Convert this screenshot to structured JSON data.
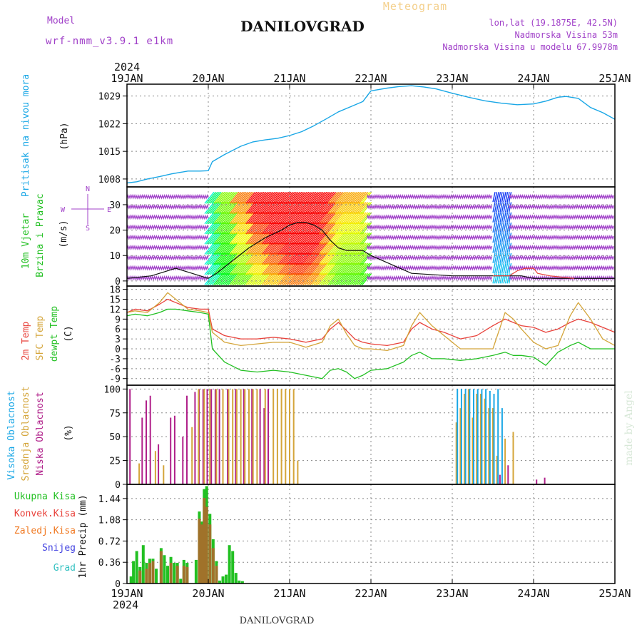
{
  "header": {
    "meteogram_label": "Meteogram",
    "location_title": "DANILOVGRAD",
    "model_label": "Model",
    "model_name": "wrf-nmm_v3.9.1 e1km",
    "lonlat": "lon,lat (19.1875E, 42.5N)",
    "altitude": "Nadmorska Visina 53m",
    "model_altitude": "Nadmorska Visina u modelu 67.9978m",
    "bottom_title": "DANILOVGRAD",
    "watermark": "made by Angel"
  },
  "time_axis": {
    "year": "2024",
    "ticks": [
      "19JAN",
      "20JAN",
      "21JAN",
      "22JAN",
      "23JAN",
      "24JAN",
      "25JAN"
    ]
  },
  "colors": {
    "pressure": "#1aa7e6",
    "temp2m": "#e8413a",
    "sfc": "#d4a53a",
    "dewpt": "#22c022",
    "purple": "#a040c8",
    "low_cloud": "#b0208a",
    "mid_cloud": "#d4a53a",
    "high_cloud": "#1aa7e6",
    "precip_total": "#22c022",
    "precip_conv": "#e8413a",
    "precip_frozen": "#f07820",
    "precip_snow": "#4040e0",
    "precip_hail": "#30c0c0"
  },
  "chart_data": [
    {
      "type": "line",
      "panel": "pressure",
      "ylabel_lines": [
        "Pritisak na nivou mora",
        "(hPa)"
      ],
      "y_ticks": [
        1008,
        1015,
        1022,
        1029
      ],
      "ylim": [
        1006,
        1032
      ],
      "x_days": [
        0,
        0.12,
        0.25,
        0.4,
        0.55,
        0.75,
        0.9,
        1.0,
        1.05,
        1.2,
        1.4,
        1.55,
        1.7,
        1.85,
        2.0,
        2.15,
        2.3,
        2.45,
        2.6,
        2.75,
        2.9,
        3.0,
        3.2,
        3.35,
        3.5,
        3.65,
        3.8,
        4.0,
        4.2,
        4.4,
        4.6,
        4.8,
        5.0,
        5.15,
        5.3,
        5.4,
        5.55,
        5.7,
        5.85,
        6.0
      ],
      "values": [
        1007,
        1007.3,
        1008,
        1008.6,
        1009.3,
        1010,
        1010,
        1010.1,
        1012.4,
        1014.2,
        1016.3,
        1017.4,
        1017.9,
        1018.3,
        1019,
        1020,
        1021.5,
        1023.2,
        1025,
        1026.3,
        1027.6,
        1030.3,
        1031,
        1031.4,
        1031.6,
        1031.3,
        1030.8,
        1029.7,
        1028.7,
        1027.8,
        1027.2,
        1026.8,
        1027,
        1027.7,
        1028.7,
        1028.9,
        1028.4,
        1026.1,
        1024.8,
        1023.1
      ]
    },
    {
      "type": "line",
      "panel": "wind",
      "ylabel_lines": [
        "10m Vjetar",
        "Brzina i Pravac",
        "(m/s)"
      ],
      "compass": [
        "N",
        "W",
        "E",
        "S"
      ],
      "y_ticks": [
        0,
        10,
        20,
        30
      ],
      "ylim": [
        -2,
        37
      ],
      "x_days": [
        0,
        0.3,
        0.6,
        0.8,
        1.0,
        1.1,
        1.3,
        1.5,
        1.7,
        1.9,
        2.0,
        2.1,
        2.2,
        2.3,
        2.4,
        2.5,
        2.6,
        2.7,
        2.8,
        2.9,
        3.0,
        3.5,
        4.0,
        4.5,
        4.7,
        4.85,
        5.0,
        5.2,
        5.5,
        6.0
      ],
      "values": [
        1,
        2,
        5,
        3,
        1,
        3,
        8,
        13,
        17,
        20,
        22,
        23,
        23,
        22,
        20,
        16,
        13,
        12,
        12,
        12,
        10,
        3,
        2,
        2,
        2,
        2,
        1,
        1,
        1,
        1
      ],
      "secondary_values_days": [
        4.5,
        4.7,
        4.8,
        4.9,
        5.0,
        5.05,
        5.2,
        5.5
      ],
      "secondary_values": [
        2,
        2,
        4,
        5,
        5,
        3,
        2,
        1
      ]
    },
    {
      "type": "line",
      "panel": "temperature",
      "ylabel_lines": [
        "2m Temp",
        "SFC Temp",
        "dewpt Temp",
        "(C)"
      ],
      "y_ticks": [
        -9,
        -6,
        -3,
        0,
        3,
        6,
        9,
        12,
        15,
        18
      ],
      "ylim": [
        -11,
        19
      ],
      "x_days": [
        0,
        0.1,
        0.25,
        0.4,
        0.5,
        0.6,
        0.75,
        0.9,
        1.0,
        1.05,
        1.2,
        1.4,
        1.6,
        1.8,
        2.0,
        2.2,
        2.4,
        2.5,
        2.6,
        2.7,
        2.8,
        2.9,
        3.0,
        3.2,
        3.4,
        3.5,
        3.6,
        3.75,
        3.9,
        4.1,
        4.3,
        4.5,
        4.65,
        4.75,
        4.85,
        5.0,
        5.15,
        5.3,
        5.45,
        5.55,
        5.7,
        5.85,
        6.0
      ],
      "series": [
        {
          "name": "2m Temp",
          "values": [
            11,
            12,
            11.5,
            13.5,
            15,
            14,
            12.5,
            12,
            12,
            6,
            4,
            3,
            3,
            3.5,
            3,
            2,
            3,
            6,
            8,
            5.5,
            3,
            2,
            1.5,
            1,
            2,
            6,
            8,
            6,
            5,
            3,
            4,
            7,
            9,
            8,
            7,
            6.5,
            5,
            6,
            8,
            9,
            8,
            6.5,
            5
          ]
        },
        {
          "name": "SFC Temp",
          "values": [
            11,
            11.5,
            11,
            14,
            17,
            15,
            12,
            11.5,
            11,
            5,
            2,
            1,
            1.5,
            2,
            2,
            0.5,
            2,
            7,
            9,
            4.5,
            1,
            0,
            0,
            -0.5,
            1,
            7,
            11,
            7,
            4,
            0,
            0,
            0,
            11,
            9,
            6,
            2,
            0,
            1,
            10,
            14,
            9,
            3,
            1
          ]
        },
        {
          "name": "dewpt Temp",
          "values": [
            10,
            10.5,
            10,
            11,
            12,
            12,
            11.5,
            11,
            10.5,
            0,
            -4,
            -6.5,
            -7,
            -6.5,
            -7,
            -8,
            -9,
            -6.5,
            -6,
            -7,
            -9,
            -8,
            -6.5,
            -6,
            -4,
            -2,
            -1,
            -3,
            -3,
            -3.5,
            -3,
            -2,
            -1,
            -2,
            -2,
            -2.5,
            -5,
            -1,
            1,
            2,
            0,
            0,
            0
          ]
        }
      ]
    },
    {
      "type": "bar",
      "panel": "cloud",
      "ylabel_lines": [
        "Visoka Oblacnost",
        "Srednja Oblacnost",
        "Niska Oblacnost",
        "(%)"
      ],
      "y_ticks": [
        0,
        25,
        50,
        75,
        100
      ],
      "ylim": [
        0,
        104
      ],
      "series": [
        {
          "name": "Niska Oblacnost",
          "x_days": [
            0.05,
            0.2,
            0.25,
            0.3,
            0.4,
            0.55,
            0.6,
            0.7,
            0.75,
            0.85,
            0.9,
            0.95,
            1.0,
            1.05,
            1.1,
            1.15,
            1.25,
            1.35,
            1.45,
            1.55,
            1.65,
            1.7,
            1.75,
            4.6,
            4.7,
            5.05,
            5.15
          ],
          "values": [
            100,
            70,
            88,
            93,
            42,
            70,
            72,
            50,
            93,
            97,
            100,
            100,
            100,
            100,
            100,
            100,
            100,
            100,
            100,
            100,
            100,
            80,
            100,
            10,
            20,
            5,
            7
          ]
        },
        {
          "name": "Srednja Oblacnost",
          "x_days": [
            0.15,
            0.35,
            0.45,
            0.8,
            0.88,
            0.95,
            1.02,
            1.1,
            1.18,
            1.25,
            1.3,
            1.35,
            1.4,
            1.45,
            1.5,
            1.55,
            1.6,
            1.7,
            1.8,
            1.85,
            1.9,
            1.95,
            2.0,
            2.05,
            2.1,
            4.05,
            4.1,
            4.15,
            4.2,
            4.25,
            4.3,
            4.35,
            4.4,
            4.45,
            4.5,
            4.55,
            4.65,
            4.75
          ],
          "values": [
            22,
            35,
            20,
            60,
            100,
            100,
            100,
            100,
            100,
            100,
            100,
            100,
            100,
            100,
            100,
            100,
            100,
            100,
            100,
            100,
            100,
            100,
            100,
            100,
            25,
            65,
            80,
            95,
            100,
            70,
            95,
            95,
            90,
            80,
            80,
            30,
            48,
            55
          ]
        },
        {
          "name": "Visoka Oblacnost",
          "x_days": [
            4.05,
            4.1,
            4.15,
            4.2,
            4.25,
            4.3,
            4.35,
            4.4,
            4.45,
            4.5,
            4.55,
            4.6
          ],
          "values": [
            100,
            100,
            100,
            100,
            100,
            100,
            100,
            100,
            98,
            95,
            100,
            80
          ]
        }
      ]
    },
    {
      "type": "bar",
      "panel": "precipitation",
      "ylabel_lines": [
        "1hr Precip (mm)"
      ],
      "legend": [
        "Ukupna Kisa",
        "Konvek.Kisa",
        "Zaledj.Kisa",
        "Snijeg",
        "Grad"
      ],
      "y_ticks": [
        0,
        0.36,
        0.72,
        1.08,
        1.44
      ],
      "ylim": [
        0,
        1.68
      ],
      "series": [
        {
          "name": "Ukupna Kisa",
          "x_days": [
            0.05,
            0.08,
            0.12,
            0.16,
            0.2,
            0.24,
            0.28,
            0.32,
            0.36,
            0.42,
            0.46,
            0.5,
            0.54,
            0.58,
            0.62,
            0.66,
            0.7,
            0.74,
            0.85,
            0.89,
            0.92,
            0.95,
            0.98,
            1.02,
            1.06,
            1.1,
            1.14,
            1.18,
            1.22,
            1.26,
            1.3,
            1.34,
            1.38,
            1.42
          ],
          "values": [
            0.12,
            0.38,
            0.55,
            0.28,
            0.65,
            0.35,
            0.42,
            0.42,
            0.25,
            0.6,
            0.48,
            0.3,
            0.45,
            0.35,
            0.35,
            0.08,
            0.4,
            0.35,
            0.4,
            1.22,
            1.05,
            1.6,
            1.65,
            1.18,
            0.75,
            0.38,
            0.05,
            0.12,
            0.15,
            0.65,
            0.55,
            0.18,
            0.05,
            0.04
          ]
        },
        {
          "name": "Konvek.Kisa",
          "x_days": [
            0.16,
            0.24,
            0.28,
            0.32,
            0.42,
            0.54,
            0.62,
            0.7,
            0.74,
            0.89,
            0.92,
            0.95,
            0.98,
            1.02,
            1.06,
            1.1
          ],
          "values": [
            0.22,
            0.25,
            0.35,
            0.38,
            0.55,
            0.35,
            0.3,
            0.3,
            0.28,
            1.1,
            1.0,
            1.45,
            1.3,
            1.0,
            0.6,
            0.3
          ]
        }
      ]
    }
  ]
}
